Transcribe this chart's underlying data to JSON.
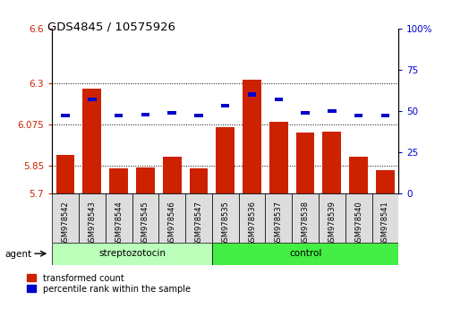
{
  "title": "GDS4845 / 10575926",
  "samples": [
    "GSM978542",
    "GSM978543",
    "GSM978544",
    "GSM978545",
    "GSM978546",
    "GSM978547",
    "GSM978535",
    "GSM978536",
    "GSM978537",
    "GSM978538",
    "GSM978539",
    "GSM978540",
    "GSM978541"
  ],
  "groups": [
    "streptozotocin",
    "streptozotocin",
    "streptozotocin",
    "streptozotocin",
    "streptozotocin",
    "streptozotocin",
    "control",
    "control",
    "control",
    "control",
    "control",
    "control",
    "control"
  ],
  "transformed_count": [
    5.91,
    6.27,
    5.835,
    5.84,
    5.9,
    5.835,
    6.06,
    6.32,
    6.09,
    6.03,
    6.035,
    5.9,
    5.825
  ],
  "percentile_rank": [
    47,
    57,
    47,
    48,
    49,
    47,
    53,
    60,
    57,
    49,
    50,
    47,
    47
  ],
  "ylim_left": [
    5.7,
    6.6
  ],
  "ylim_right": [
    0,
    100
  ],
  "yticks_left": [
    5.7,
    5.85,
    6.075,
    6.3,
    6.6
  ],
  "yticks_right": [
    0,
    25,
    50,
    75,
    100
  ],
  "hlines": [
    5.85,
    6.075,
    6.3
  ],
  "bar_color": "#cc2200",
  "percentile_color": "#0000cc",
  "strep_color": "#bbffbb",
  "control_color": "#44ee44",
  "streptozotocin_label": "streptozotocin",
  "control_label": "control",
  "agent_label": "agent",
  "legend_red": "transformed count",
  "legend_blue": "percentile rank within the sample",
  "tick_label_color_left": "#cc2200",
  "tick_label_color_right": "#0000cc"
}
